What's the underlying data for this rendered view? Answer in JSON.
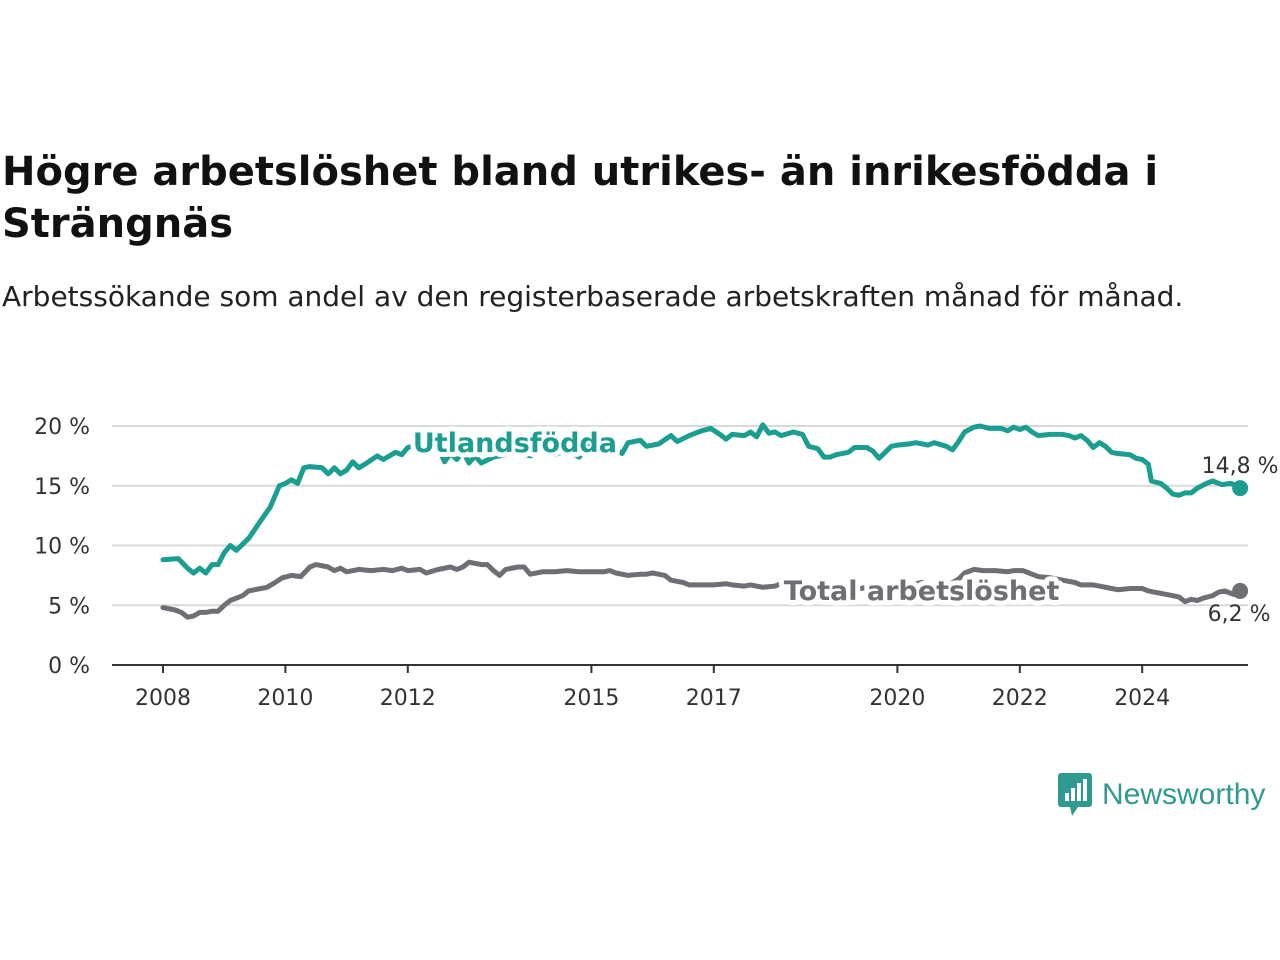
{
  "header": {
    "title": "Högre arbetslöshet bland utrikes- än inrikesfödda i Strängnäs",
    "subtitle": "Arbetssökande som andel av den registerbaserade arbetskraften månad för månad."
  },
  "brand": {
    "name": "Newsworthy",
    "color": "#2f9a8f",
    "icon": "newsworthy-bar-chart-icon"
  },
  "chart_data": {
    "type": "line",
    "title": "Högre arbetslöshet bland utrikes- än inrikesfödda i Strängnäs",
    "subtitle": "Arbetssökande som andel av den registerbaserade arbetskraften månad för månad.",
    "xlabel": "",
    "ylabel": "",
    "x_ticks": [
      {
        "label": "2008",
        "value": 2008.0
      },
      {
        "label": "2010",
        "value": 2010.0
      },
      {
        "label": "2012",
        "value": 2012.0
      },
      {
        "label": "2015",
        "value": 2015.0
      },
      {
        "label": "2017",
        "value": 2017.0
      },
      {
        "label": "2020",
        "value": 2020.0
      },
      {
        "label": "2022",
        "value": 2022.0
      },
      {
        "label": "2024",
        "value": 2024.0
      }
    ],
    "y_ticks": [
      {
        "label": "0 %",
        "value": 0
      },
      {
        "label": "5 %",
        "value": 5
      },
      {
        "label": "10 %",
        "value": 10
      },
      {
        "label": "15 %",
        "value": 15
      },
      {
        "label": "20 %",
        "value": 20
      }
    ],
    "xlim": [
      2006.8,
      2025.6
    ],
    "ylim": [
      0,
      20
    ],
    "grid": true,
    "series": [
      {
        "name": "Utlandsfödda",
        "color": "#1a9e8f",
        "end_label": "14,8 %",
        "points": [
          [
            2008.0,
            8.8
          ],
          [
            2008.25,
            8.9
          ],
          [
            2008.4,
            8.1
          ],
          [
            2008.5,
            7.7
          ],
          [
            2008.6,
            8.1
          ],
          [
            2008.7,
            7.7
          ],
          [
            2008.8,
            8.4
          ],
          [
            2008.9,
            8.4
          ],
          [
            2009.0,
            9.4
          ],
          [
            2009.1,
            10.0
          ],
          [
            2009.2,
            9.6
          ],
          [
            2009.4,
            10.6
          ],
          [
            2009.6,
            12.1
          ],
          [
            2009.75,
            13.2
          ],
          [
            2009.9,
            15.0
          ],
          [
            2010.0,
            15.2
          ],
          [
            2010.1,
            15.5
          ],
          [
            2010.2,
            15.2
          ],
          [
            2010.3,
            16.5
          ],
          [
            2010.4,
            16.6
          ],
          [
            2010.6,
            16.5
          ],
          [
            2010.7,
            16.0
          ],
          [
            2010.8,
            16.5
          ],
          [
            2010.9,
            16.0
          ],
          [
            2011.0,
            16.3
          ],
          [
            2011.1,
            17.0
          ],
          [
            2011.2,
            16.5
          ],
          [
            2011.3,
            16.8
          ],
          [
            2011.5,
            17.5
          ],
          [
            2011.6,
            17.2
          ],
          [
            2011.8,
            17.8
          ],
          [
            2011.9,
            17.6
          ],
          [
            2012.0,
            18.2
          ],
          [
            2012.2,
            18.5
          ],
          [
            2012.4,
            18.9
          ],
          [
            2012.5,
            18.2
          ],
          [
            2012.6,
            17.0
          ],
          [
            2012.7,
            17.7
          ],
          [
            2012.8,
            17.2
          ],
          [
            2012.9,
            17.9
          ],
          [
            2013.0,
            16.9
          ],
          [
            2013.1,
            17.5
          ],
          [
            2013.2,
            16.9
          ],
          [
            2013.4,
            17.4
          ],
          [
            2013.6,
            17.6
          ],
          [
            2013.8,
            17.8
          ],
          [
            2014.0,
            17.5
          ],
          [
            2014.2,
            17.9
          ],
          [
            2014.4,
            17.6
          ],
          [
            2014.6,
            18.0
          ],
          [
            2014.8,
            17.4
          ],
          [
            2015.0,
            18.5
          ],
          [
            2015.2,
            18.9
          ],
          [
            2015.4,
            18.0
          ],
          [
            2015.5,
            17.7
          ],
          [
            2015.6,
            18.6
          ],
          [
            2015.8,
            18.8
          ],
          [
            2015.9,
            18.3
          ],
          [
            2016.1,
            18.5
          ],
          [
            2016.3,
            19.2
          ],
          [
            2016.4,
            18.7
          ],
          [
            2016.6,
            19.2
          ],
          [
            2016.8,
            19.6
          ],
          [
            2016.95,
            19.8
          ],
          [
            2017.1,
            19.3
          ],
          [
            2017.2,
            18.9
          ],
          [
            2017.3,
            19.3
          ],
          [
            2017.5,
            19.2
          ],
          [
            2017.6,
            19.5
          ],
          [
            2017.7,
            19.1
          ],
          [
            2017.8,
            20.1
          ],
          [
            2017.9,
            19.4
          ],
          [
            2018.0,
            19.5
          ],
          [
            2018.1,
            19.2
          ],
          [
            2018.3,
            19.5
          ],
          [
            2018.45,
            19.3
          ],
          [
            2018.55,
            18.3
          ],
          [
            2018.7,
            18.1
          ],
          [
            2018.8,
            17.4
          ],
          [
            2018.9,
            17.4
          ],
          [
            2019.0,
            17.6
          ],
          [
            2019.2,
            17.8
          ],
          [
            2019.3,
            18.2
          ],
          [
            2019.5,
            18.2
          ],
          [
            2019.6,
            17.9
          ],
          [
            2019.7,
            17.3
          ],
          [
            2019.8,
            17.8
          ],
          [
            2019.9,
            18.3
          ],
          [
            2020.0,
            18.4
          ],
          [
            2020.2,
            18.5
          ],
          [
            2020.3,
            18.6
          ],
          [
            2020.5,
            18.4
          ],
          [
            2020.6,
            18.6
          ],
          [
            2020.8,
            18.3
          ],
          [
            2020.9,
            18.0
          ],
          [
            2021.0,
            18.7
          ],
          [
            2021.1,
            19.5
          ],
          [
            2021.25,
            19.9
          ],
          [
            2021.35,
            20.0
          ],
          [
            2021.5,
            19.8
          ],
          [
            2021.7,
            19.8
          ],
          [
            2021.8,
            19.6
          ],
          [
            2021.9,
            19.9
          ],
          [
            2022.0,
            19.7
          ],
          [
            2022.1,
            19.9
          ],
          [
            2022.2,
            19.5
          ],
          [
            2022.3,
            19.2
          ],
          [
            2022.5,
            19.3
          ],
          [
            2022.7,
            19.3
          ],
          [
            2022.8,
            19.2
          ],
          [
            2022.9,
            19.0
          ],
          [
            2023.0,
            19.2
          ],
          [
            2023.1,
            18.8
          ],
          [
            2023.2,
            18.2
          ],
          [
            2023.3,
            18.6
          ],
          [
            2023.4,
            18.3
          ],
          [
            2023.5,
            17.8
          ],
          [
            2023.6,
            17.7
          ],
          [
            2023.8,
            17.6
          ],
          [
            2023.9,
            17.3
          ],
          [
            2024.0,
            17.2
          ],
          [
            2024.1,
            16.8
          ],
          [
            2024.15,
            15.4
          ],
          [
            2024.3,
            15.2
          ],
          [
            2024.4,
            14.8
          ],
          [
            2024.5,
            14.3
          ],
          [
            2024.6,
            14.2
          ],
          [
            2024.7,
            14.4
          ],
          [
            2024.8,
            14.4
          ],
          [
            2024.9,
            14.8
          ],
          [
            2025.05,
            15.2
          ],
          [
            2025.15,
            15.4
          ],
          [
            2025.3,
            15.1
          ],
          [
            2025.45,
            15.2
          ],
          [
            2025.6,
            14.8
          ]
        ]
      },
      {
        "name": "Total arbetslöshet",
        "color": "#6f6e75",
        "end_label": "6,2 %",
        "points": [
          [
            2008.0,
            4.8
          ],
          [
            2008.2,
            4.6
          ],
          [
            2008.3,
            4.4
          ],
          [
            2008.4,
            4.0
          ],
          [
            2008.5,
            4.1
          ],
          [
            2008.6,
            4.4
          ],
          [
            2008.7,
            4.4
          ],
          [
            2008.8,
            4.5
          ],
          [
            2008.9,
            4.5
          ],
          [
            2009.0,
            5.0
          ],
          [
            2009.1,
            5.4
          ],
          [
            2009.3,
            5.8
          ],
          [
            2009.4,
            6.2
          ],
          [
            2009.6,
            6.4
          ],
          [
            2009.7,
            6.5
          ],
          [
            2009.8,
            6.8
          ],
          [
            2009.95,
            7.3
          ],
          [
            2010.1,
            7.5
          ],
          [
            2010.25,
            7.4
          ],
          [
            2010.4,
            8.2
          ],
          [
            2010.5,
            8.4
          ],
          [
            2010.7,
            8.2
          ],
          [
            2010.8,
            7.9
          ],
          [
            2010.9,
            8.1
          ],
          [
            2011.0,
            7.8
          ],
          [
            2011.2,
            8.0
          ],
          [
            2011.4,
            7.9
          ],
          [
            2011.6,
            8.0
          ],
          [
            2011.75,
            7.9
          ],
          [
            2011.9,
            8.1
          ],
          [
            2012.0,
            7.9
          ],
          [
            2012.2,
            8.0
          ],
          [
            2012.3,
            7.7
          ],
          [
            2012.5,
            8.0
          ],
          [
            2012.7,
            8.2
          ],
          [
            2012.8,
            8.0
          ],
          [
            2012.9,
            8.2
          ],
          [
            2013.0,
            8.6
          ],
          [
            2013.2,
            8.4
          ],
          [
            2013.3,
            8.4
          ],
          [
            2013.4,
            7.9
          ],
          [
            2013.5,
            7.5
          ],
          [
            2013.6,
            8.0
          ],
          [
            2013.8,
            8.2
          ],
          [
            2013.9,
            8.2
          ],
          [
            2014.0,
            7.6
          ],
          [
            2014.2,
            7.8
          ],
          [
            2014.4,
            7.8
          ],
          [
            2014.6,
            7.9
          ],
          [
            2014.8,
            7.8
          ],
          [
            2015.0,
            7.8
          ],
          [
            2015.2,
            7.8
          ],
          [
            2015.3,
            7.9
          ],
          [
            2015.4,
            7.7
          ],
          [
            2015.6,
            7.5
          ],
          [
            2015.8,
            7.6
          ],
          [
            2015.9,
            7.6
          ],
          [
            2016.0,
            7.7
          ],
          [
            2016.2,
            7.5
          ],
          [
            2016.3,
            7.1
          ],
          [
            2016.5,
            6.9
          ],
          [
            2016.6,
            6.7
          ],
          [
            2016.8,
            6.7
          ],
          [
            2017.0,
            6.7
          ],
          [
            2017.2,
            6.8
          ],
          [
            2017.3,
            6.7
          ],
          [
            2017.5,
            6.6
          ],
          [
            2017.6,
            6.7
          ],
          [
            2017.8,
            6.5
          ],
          [
            2018.0,
            6.6
          ],
          [
            2018.1,
            6.8
          ],
          [
            2018.2,
            7.0
          ],
          [
            2018.4,
            6.9
          ],
          [
            2018.6,
            6.7
          ],
          [
            2018.7,
            6.5
          ],
          [
            2018.9,
            6.7
          ],
          [
            2019.0,
            6.6
          ],
          [
            2019.1,
            6.6
          ],
          [
            2019.2,
            6.5
          ],
          [
            2019.4,
            6.4
          ],
          [
            2019.6,
            6.6
          ],
          [
            2019.8,
            6.7
          ],
          [
            2020.0,
            6.7
          ],
          [
            2020.2,
            6.7
          ],
          [
            2020.4,
            6.9
          ],
          [
            2020.6,
            6.7
          ],
          [
            2020.8,
            6.6
          ],
          [
            2021.0,
            7.2
          ],
          [
            2021.1,
            7.7
          ],
          [
            2021.25,
            8.0
          ],
          [
            2021.4,
            7.9
          ],
          [
            2021.6,
            7.9
          ],
          [
            2021.8,
            7.8
          ],
          [
            2021.9,
            7.9
          ],
          [
            2022.05,
            7.9
          ],
          [
            2022.2,
            7.6
          ],
          [
            2022.3,
            7.4
          ],
          [
            2022.5,
            7.3
          ],
          [
            2022.7,
            7.1
          ],
          [
            2022.9,
            6.9
          ],
          [
            2023.0,
            6.7
          ],
          [
            2023.2,
            6.7
          ],
          [
            2023.3,
            6.6
          ],
          [
            2023.5,
            6.4
          ],
          [
            2023.6,
            6.3
          ],
          [
            2023.8,
            6.4
          ],
          [
            2024.0,
            6.4
          ],
          [
            2024.1,
            6.2
          ],
          [
            2024.3,
            6.0
          ],
          [
            2024.5,
            5.8
          ],
          [
            2024.6,
            5.7
          ],
          [
            2024.7,
            5.3
          ],
          [
            2024.8,
            5.5
          ],
          [
            2024.9,
            5.4
          ],
          [
            2025.0,
            5.6
          ],
          [
            2025.15,
            5.8
          ],
          [
            2025.25,
            6.1
          ],
          [
            2025.35,
            6.2
          ],
          [
            2025.5,
            5.9
          ],
          [
            2025.6,
            6.2
          ]
        ]
      }
    ]
  }
}
